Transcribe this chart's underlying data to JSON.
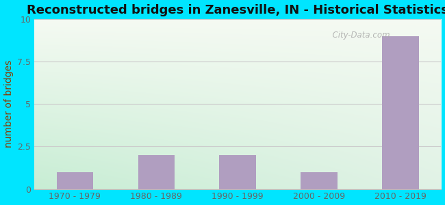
{
  "categories": [
    "1970 - 1979",
    "1980 - 1989",
    "1990 - 1999",
    "2000 - 2009",
    "2010 - 2019"
  ],
  "values": [
    1,
    2,
    2,
    1,
    9
  ],
  "bar_color": "#b09ec0",
  "bar_edgecolor": "#b09ec0",
  "title": "Reconstructed bridges in Zanesville, IN - Historical Statistics",
  "title_fontsize": 13,
  "title_fontweight": "bold",
  "ylabel": "number of bridges",
  "ylabel_color": "#8b3a00",
  "ylabel_fontsize": 10,
  "tick_label_color": "#666666",
  "tick_fontsize": 9,
  "ylim": [
    0,
    10
  ],
  "yticks": [
    0,
    2.5,
    5,
    7.5,
    10
  ],
  "background_outer": "#00e5ff",
  "plot_bg_topleft": "#e8f5e9",
  "plot_bg_topright": "#f5f5f0",
  "plot_bg_bottomleft": "#c8ecd8",
  "plot_bg_bottomright": "#eaf0ea",
  "grid_color": "#cccccc",
  "grid_linewidth": 0.8,
  "watermark": "  City-Data.com",
  "watermark_color": "#aaaaaa",
  "bar_width": 0.45
}
